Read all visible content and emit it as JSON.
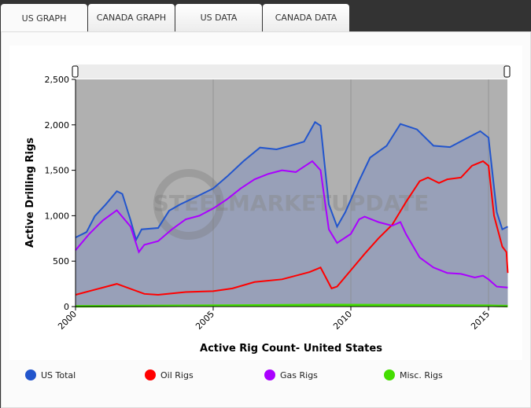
{
  "tabs": [
    {
      "label": "US GRAPH",
      "active": true
    },
    {
      "label": "CANADA GRAPH"
    },
    {
      "label": "US DATA"
    },
    {
      "label": "CANADA DATA"
    }
  ],
  "watermark": "STEELMARKETUPDATE",
  "chart_data": {
    "type": "line",
    "xlabel": "Active Rig Count- United States",
    "ylabel": "Active Drilling Rigs",
    "xlim": [
      2000,
      2015.7
    ],
    "ylim": [
      0,
      2500
    ],
    "xticks": [
      "2000",
      "2005",
      "2010",
      "2015"
    ],
    "yticks": [
      "0",
      "500",
      "1,000",
      "1,500",
      "2,000",
      "2,500"
    ],
    "grid": true,
    "legend": "bottom",
    "series": [
      {
        "name": "US Total",
        "color": "#2255cc",
        "x": [
          2000,
          2000.4,
          2000.7,
          2001.1,
          2001.5,
          2001.7,
          2002,
          2002.2,
          2002.4,
          2003,
          2003.4,
          2003.8,
          2004.4,
          2005,
          2005.5,
          2006.1,
          2006.7,
          2007.3,
          2007.8,
          2008.3,
          2008.7,
          2008.9,
          2009.2,
          2009.5,
          2009.8,
          2010.3,
          2010.7,
          2011.3,
          2011.8,
          2012.4,
          2013,
          2013.6,
          2014.1,
          2014.7,
          2015,
          2015.3,
          2015.5,
          2015.7
        ],
        "y": [
          760,
          820,
          995,
          1125,
          1270,
          1240,
          950,
          735,
          850,
          865,
          1055,
          1125,
          1210,
          1300,
          1430,
          1600,
          1750,
          1730,
          1770,
          1815,
          2030,
          1990,
          1125,
          880,
          1040,
          1385,
          1640,
          1770,
          2010,
          1950,
          1770,
          1755,
          1835,
          1930,
          1860,
          1040,
          850,
          880
        ]
      },
      {
        "name": "Oil Rigs",
        "color": "#ff0000",
        "x": [
          2000,
          2001.5,
          2002.5,
          2003,
          2004,
          2005,
          2005.7,
          2006.5,
          2007.5,
          2008.5,
          2008.9,
          2009.3,
          2009.5,
          2010,
          2010.5,
          2011,
          2011.5,
          2012,
          2012.5,
          2012.8,
          2013.2,
          2013.5,
          2014,
          2014.4,
          2014.8,
          2015,
          2015.2,
          2015.5,
          2015.65,
          2015.7
        ],
        "y": [
          130,
          250,
          140,
          130,
          160,
          170,
          200,
          270,
          300,
          380,
          430,
          200,
          220,
          400,
          580,
          750,
          900,
          1150,
          1380,
          1420,
          1360,
          1400,
          1420,
          1550,
          1600,
          1550,
          1000,
          660,
          600,
          370
        ]
      },
      {
        "name": "Gas Rigs",
        "color": "#aa00ff",
        "x": [
          2000,
          2000.5,
          2001,
          2001.5,
          2002,
          2002.3,
          2002.5,
          2003,
          2003.5,
          2004,
          2004.5,
          2005,
          2005.5,
          2006,
          2006.5,
          2007,
          2007.5,
          2008,
          2008.6,
          2008.9,
          2009.2,
          2009.5,
          2010,
          2010.3,
          2010.5,
          2011,
          2011.5,
          2011.8,
          2012,
          2012.5,
          2013,
          2013.5,
          2014,
          2014.5,
          2014.8,
          2015,
          2015.3,
          2015.7
        ],
        "y": [
          620,
          800,
          950,
          1060,
          880,
          600,
          680,
          720,
          850,
          960,
          1000,
          1080,
          1180,
          1300,
          1400,
          1460,
          1500,
          1480,
          1600,
          1500,
          850,
          700,
          800,
          960,
          990,
          930,
          890,
          930,
          800,
          540,
          430,
          370,
          360,
          320,
          340,
          300,
          220,
          210
        ]
      },
      {
        "name": "Misc. Rigs",
        "color": "#44dd00",
        "x": [
          2000,
          2003,
          2006,
          2009,
          2012,
          2015,
          2015.7
        ],
        "y": [
          3,
          8,
          12,
          18,
          15,
          10,
          5
        ]
      }
    ]
  }
}
